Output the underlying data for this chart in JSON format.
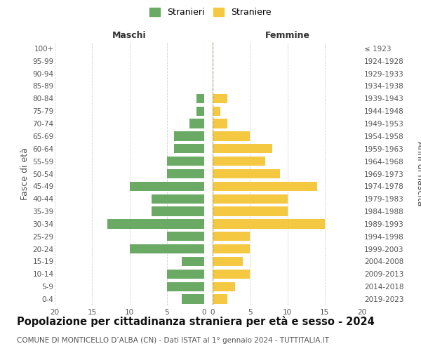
{
  "age_groups": [
    "0-4",
    "5-9",
    "10-14",
    "15-19",
    "20-24",
    "25-29",
    "30-34",
    "35-39",
    "40-44",
    "45-49",
    "50-54",
    "55-59",
    "60-64",
    "65-69",
    "70-74",
    "75-79",
    "80-84",
    "85-89",
    "90-94",
    "95-99",
    "100+"
  ],
  "birth_years": [
    "2019-2023",
    "2014-2018",
    "2009-2013",
    "2004-2008",
    "1999-2003",
    "1994-1998",
    "1989-1993",
    "1984-1988",
    "1979-1983",
    "1974-1978",
    "1969-1973",
    "1964-1968",
    "1959-1963",
    "1954-1958",
    "1949-1953",
    "1944-1948",
    "1939-1943",
    "1934-1938",
    "1929-1933",
    "1924-1928",
    "≤ 1923"
  ],
  "maschi": [
    3,
    5,
    5,
    3,
    10,
    5,
    13,
    7,
    7,
    10,
    5,
    5,
    4,
    4,
    2,
    1,
    1,
    0,
    0,
    0,
    0
  ],
  "femmine": [
    2,
    3,
    5,
    4,
    5,
    5,
    15,
    10,
    10,
    14,
    9,
    7,
    8,
    5,
    2,
    1,
    2,
    0,
    0,
    0,
    0
  ],
  "maschi_color": "#6aaa64",
  "femmine_color": "#f5c842",
  "title": "Popolazione per cittadinanza straniera per età e sesso - 2024",
  "subtitle": "COMUNE DI MONTICELLO D’ALBA (CN) - Dati ISTAT al 1° gennaio 2024 - TUTTITALIA.IT",
  "ylabel_left": "Fasce di età",
  "ylabel_right": "Anni di nascita",
  "header_left": "Maschi",
  "header_right": "Femmine",
  "legend_maschi": "Stranieri",
  "legend_femmine": "Straniere",
  "xlim": 20,
  "background_color": "#ffffff",
  "grid_color": "#cccccc",
  "title_fontsize": 10.5,
  "subtitle_fontsize": 7.5,
  "tick_fontsize": 7.5,
  "label_fontsize": 9
}
